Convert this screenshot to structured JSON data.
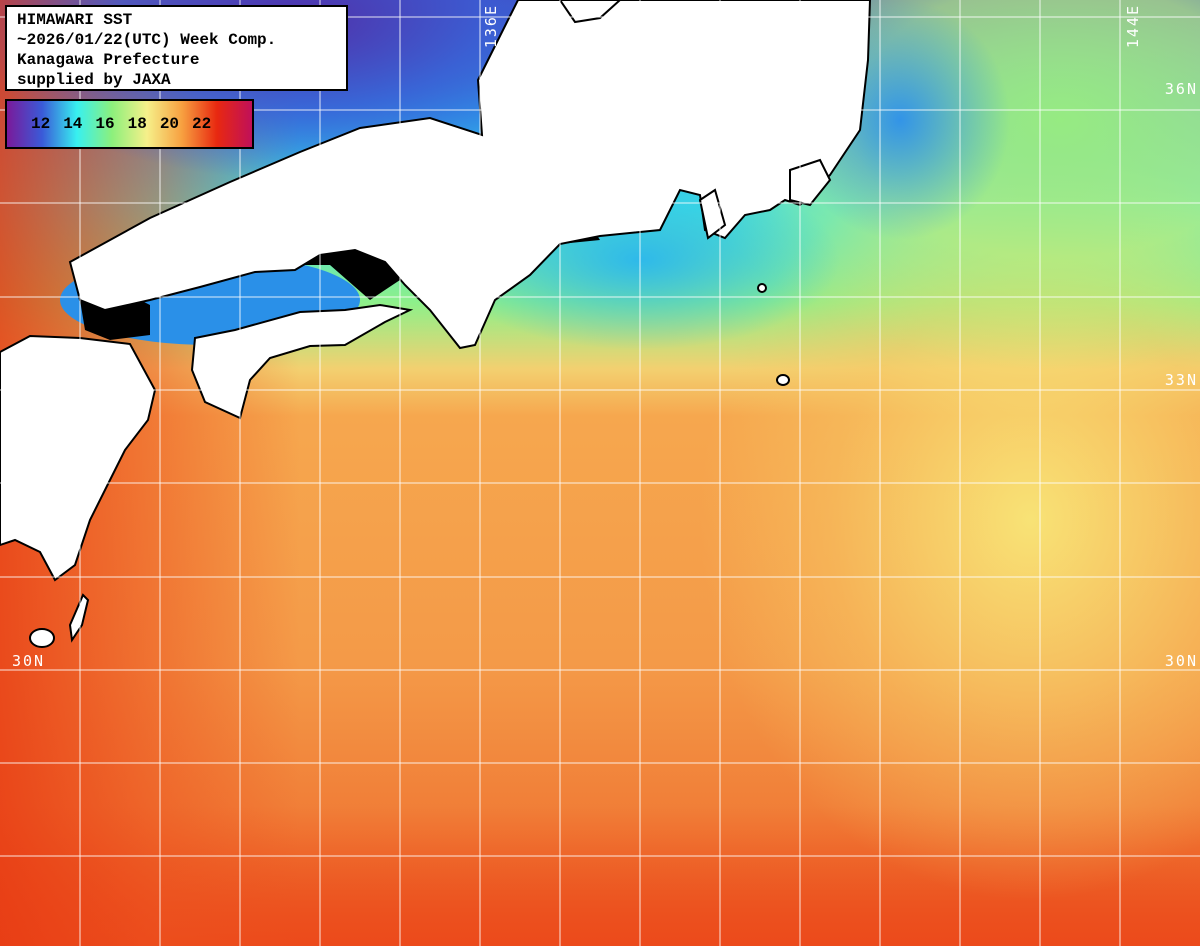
{
  "title": {
    "lines": [
      "HIMAWARI SST",
      "~2026/01/22(UTC) Week Comp.",
      "Kanagawa Prefecture",
      "supplied by JAXA"
    ]
  },
  "legend": {
    "ticks": [
      "12",
      "14",
      "16",
      "18",
      "20",
      "22"
    ],
    "colors": [
      "#7a1a9a",
      "#3a5ad8",
      "#38f0f0",
      "#8cf07c",
      "#f6f08a",
      "#f7a040",
      "#e82810",
      "#c0105a"
    ]
  },
  "grid_labels": {
    "lon": [
      "136E",
      "144E"
    ],
    "lat_right": [
      "36N",
      "33N",
      "30N"
    ],
    "lat_left": [
      "30N"
    ]
  },
  "colors": {
    "land": "#ffffff",
    "no_data": "#000000",
    "grid": "#ffffff"
  }
}
